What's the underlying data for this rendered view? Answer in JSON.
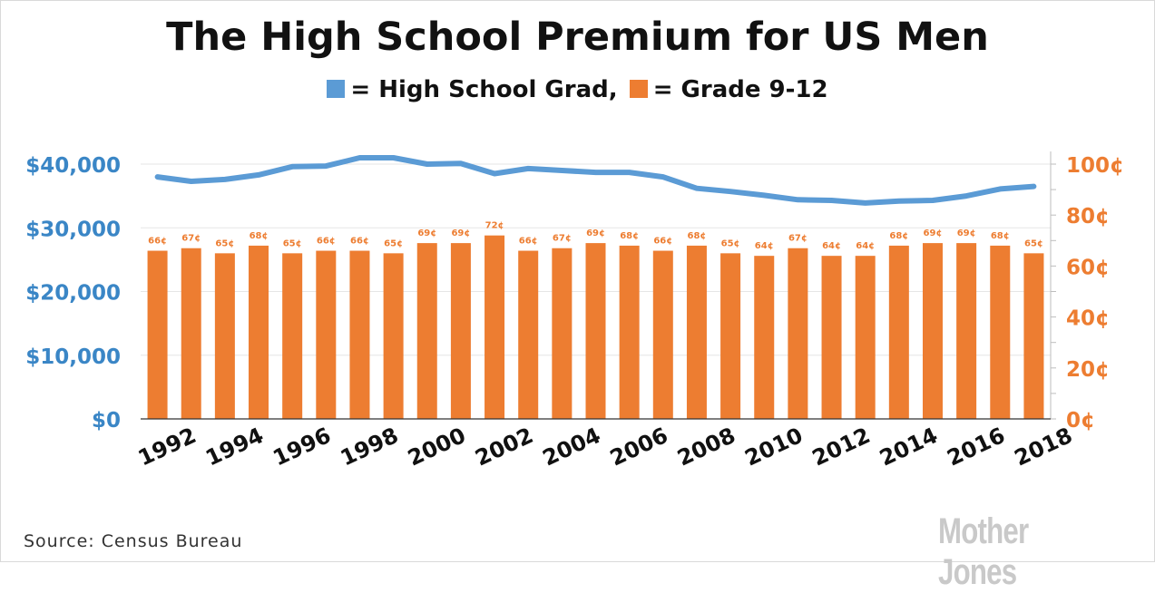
{
  "chart_data": {
    "type": "bar+line",
    "title": "The High School Premium for US Men",
    "legend": {
      "line_label": "= High School Grad,",
      "bar_label": "= Grade 9-12",
      "line_color": "#5b9bd5",
      "bar_color": "#ed7d31"
    },
    "categories": [
      1992,
      1993,
      1994,
      1995,
      1996,
      1997,
      1998,
      1999,
      2000,
      2001,
      2002,
      2003,
      2004,
      2005,
      2006,
      2007,
      2008,
      2009,
      2010,
      2011,
      2012,
      2013,
      2014,
      2015,
      2016,
      2017,
      2018
    ],
    "x_tick_labels": [
      "1992",
      "1994",
      "1996",
      "1998",
      "2000",
      "2002",
      "2004",
      "2006",
      "2008",
      "2010",
      "2012",
      "2014",
      "2016",
      "2018"
    ],
    "series": [
      {
        "name": "High School Grad",
        "type": "line",
        "axis": "left",
        "color": "#5b9bd5",
        "values": [
          38000,
          37300,
          37600,
          38300,
          39600,
          39700,
          41000,
          41000,
          40000,
          40100,
          38500,
          39300,
          39000,
          38700,
          38700,
          38000,
          36200,
          35700,
          35100,
          34400,
          34300,
          33900,
          34200,
          34300,
          35000,
          36100,
          36500
        ]
      },
      {
        "name": "Grade 9-12",
        "type": "bar",
        "axis": "right",
        "color": "#ed7d31",
        "values": [
          66,
          67,
          65,
          68,
          65,
          66,
          66,
          65,
          69,
          69,
          72,
          66,
          67,
          69,
          68,
          66,
          68,
          65,
          64,
          67,
          64,
          64,
          68,
          69,
          69,
          68,
          65
        ],
        "data_labels": [
          "66¢",
          "67¢",
          "65¢",
          "68¢",
          "65¢",
          "66¢",
          "66¢",
          "65¢",
          "69¢",
          "69¢",
          "72¢",
          "66¢",
          "67¢",
          "69¢",
          "68¢",
          "66¢",
          "68¢",
          "65¢",
          "64¢",
          "67¢",
          "64¢",
          "64¢",
          "68¢",
          "69¢",
          "69¢",
          "68¢",
          "65¢"
        ]
      }
    ],
    "left_axis": {
      "ylim": [
        0,
        40000
      ],
      "ticks": [
        0,
        10000,
        20000,
        30000,
        40000
      ],
      "tick_labels": [
        "$0",
        "$10,000",
        "$20,000",
        "$30,000",
        "$40,000"
      ],
      "color": "#3a86c6"
    },
    "right_axis": {
      "ylim": [
        0,
        100
      ],
      "ticks": [
        0,
        20,
        40,
        60,
        80,
        100
      ],
      "tick_labels": [
        "0¢",
        "20¢",
        "40¢",
        "60¢",
        "80¢",
        "100¢"
      ],
      "color": "#ed7d31"
    },
    "grid": true
  },
  "footer": {
    "source": "Source:  Census Bureau",
    "logo_text": "Mother Jones"
  }
}
